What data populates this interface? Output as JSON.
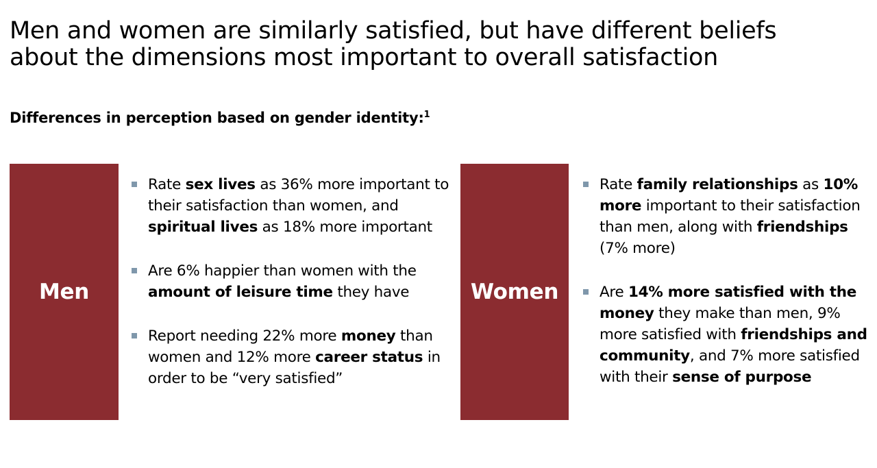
{
  "title": {
    "line1": "Men and women are similarly satisfied, but have different beliefs",
    "line2": "about the dimensions most important to overall satisfaction"
  },
  "subtitle": {
    "text": "Differences in perception based on gender identity:",
    "footnote": "1"
  },
  "colors": {
    "panel": "#8b2c30",
    "bullet": "#7f97ab"
  },
  "men": {
    "label": "Men",
    "bullets": [
      {
        "segments": [
          {
            "t": "Rate ",
            "b": false
          },
          {
            "t": "sex lives",
            "b": true
          },
          {
            "t": " as 36% more important to their satisfaction than women, and ",
            "b": false
          },
          {
            "t": "spiritual lives",
            "b": true
          },
          {
            "t": " as 18% more important",
            "b": false
          }
        ]
      },
      {
        "segments": [
          {
            "t": "Are 6% happier than women with the ",
            "b": false
          },
          {
            "t": "amount of leisure time",
            "b": true
          },
          {
            "t": " they have",
            "b": false
          }
        ]
      },
      {
        "segments": [
          {
            "t": "Report needing 22% more ",
            "b": false
          },
          {
            "t": "money",
            "b": true
          },
          {
            "t": " than women and 12% more ",
            "b": false
          },
          {
            "t": "career status",
            "b": true
          },
          {
            "t": " in order to be “very satisfied”",
            "b": false
          }
        ]
      }
    ]
  },
  "women": {
    "label": "Women",
    "bullets": [
      {
        "segments": [
          {
            "t": "Rate ",
            "b": false
          },
          {
            "t": "family relationships",
            "b": true
          },
          {
            "t": " as ",
            "b": false
          },
          {
            "t": "10% more",
            "b": true
          },
          {
            "t": " important to their satisfaction than men, along with ",
            "b": false
          },
          {
            "t": "friendships",
            "b": true
          },
          {
            "t": " (7% more)",
            "b": false
          }
        ]
      },
      {
        "segments": [
          {
            "t": "Are ",
            "b": false
          },
          {
            "t": "14% more satisfied with the money",
            "b": true
          },
          {
            "t": " they make than men, 9% more satisfied with ",
            "b": false
          },
          {
            "t": "friendships and community",
            "b": true
          },
          {
            "t": ", and 7% more satisfied with their ",
            "b": false
          },
          {
            "t": "sense of purpose",
            "b": true
          }
        ]
      }
    ]
  }
}
